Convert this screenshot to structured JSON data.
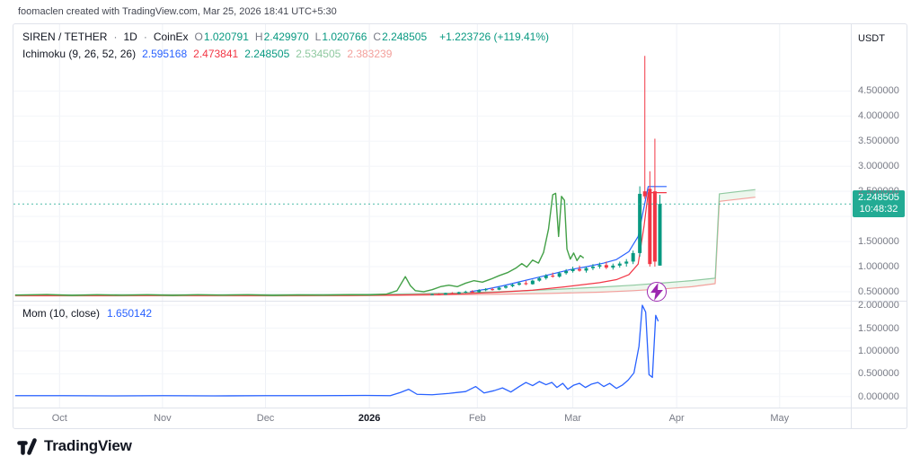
{
  "attribution": "foomaclen created with TradingView.com, Mar 25, 2026 18:41 UTC+5:30",
  "colors": {
    "up": "#089981",
    "down": "#f23645",
    "blue": "#2962ff",
    "badge": "#22ab94",
    "purple": "#9c27b0",
    "grid": "#f0f3fa",
    "text_dim": "#787b86",
    "text_dark": "#131722"
  },
  "header": {
    "symbol": "SIREN / TETHER",
    "sep": "·",
    "interval": "1D",
    "exchange": "CoinEx",
    "ohlc": [
      {
        "label": "O",
        "value": "1.020791"
      },
      {
        "label": "H",
        "value": "2.429970"
      },
      {
        "label": "L",
        "value": "1.020766"
      },
      {
        "label": "C",
        "value": "2.248505"
      }
    ],
    "change": "+1.223726 (+119.41%)",
    "ichimoku_label": "Ichimoku (9, 26, 52, 26)",
    "ichimoku_values": [
      {
        "text": "2.595168",
        "color": "#2962ff"
      },
      {
        "text": "2.473841",
        "color": "#f23645"
      },
      {
        "text": "2.248505",
        "color": "#089981"
      },
      {
        "text": "2.534505",
        "color": "#8fc9a0"
      },
      {
        "text": "2.383239",
        "color": "#f3a09c"
      }
    ]
  },
  "mom_legend": {
    "label": "Mom (10, close)",
    "value": "1.650142",
    "color": "#2962ff"
  },
  "price_axis": {
    "currency": "USDT",
    "labels": [
      {
        "text": "4.500000",
        "value": 4.5
      },
      {
        "text": "4.000000",
        "value": 4.0
      },
      {
        "text": "3.500000",
        "value": 3.5
      },
      {
        "text": "3.000000",
        "value": 3.0
      },
      {
        "text": "2.500000",
        "value": 2.5
      },
      {
        "text": "1.500000",
        "value": 1.5
      },
      {
        "text": "1.000000",
        "value": 1.0
      },
      {
        "text": "0.500000",
        "value": 0.5
      }
    ],
    "badge": {
      "price": "2.248505",
      "countdown": "10:48:32",
      "value": 2.248505,
      "color": "#22ab94"
    }
  },
  "mom_axis": {
    "labels": [
      {
        "text": "2.000000",
        "value": 2.0
      },
      {
        "text": "1.500000",
        "value": 1.5
      },
      {
        "text": "1.000000",
        "value": 1.0
      },
      {
        "text": "0.500000",
        "value": 0.5
      },
      {
        "text": "0.000000",
        "value": 0.0
      }
    ]
  },
  "time_axis": {
    "labels": [
      {
        "text": "Oct",
        "x": 0.055,
        "bold": false
      },
      {
        "text": "Nov",
        "x": 0.178,
        "bold": false
      },
      {
        "text": "Dec",
        "x": 0.301,
        "bold": false
      },
      {
        "text": "2026",
        "x": 0.425,
        "bold": true
      },
      {
        "text": "Feb",
        "x": 0.554,
        "bold": false
      },
      {
        "text": "Mar",
        "x": 0.668,
        "bold": false
      },
      {
        "text": "Apr",
        "x": 0.792,
        "bold": false
      },
      {
        "text": "May",
        "x": 0.915,
        "bold": false
      }
    ]
  },
  "logo": {
    "text": "TradingView"
  },
  "chart_data": [
    {
      "type": "candlestick",
      "title": "SIREN/TETHER 1D candles with Ichimoku (9, 26, 52, 26) overlay",
      "ylim": [
        0.32,
        5.83
      ],
      "grid_values": [
        0.5,
        1.0,
        1.5,
        2.0,
        2.5,
        3.0,
        3.5,
        4.0,
        4.5
      ],
      "price_line": {
        "value": 2.248505,
        "color": "#22ab94"
      },
      "event_marker": {
        "x": 0.768,
        "value": 0.5,
        "name": "flash-event"
      },
      "candles": [
        [
          0.5,
          0.44,
          0.46,
          0.43,
          0.45
        ],
        [
          0.508,
          0.45,
          0.47,
          0.44,
          0.44
        ],
        [
          0.516,
          0.44,
          0.48,
          0.44,
          0.47
        ],
        [
          0.524,
          0.47,
          0.49,
          0.45,
          0.46
        ],
        [
          0.532,
          0.46,
          0.5,
          0.45,
          0.49
        ],
        [
          0.54,
          0.49,
          0.52,
          0.47,
          0.5
        ],
        [
          0.548,
          0.5,
          0.53,
          0.48,
          0.49
        ],
        [
          0.556,
          0.49,
          0.55,
          0.48,
          0.53
        ],
        [
          0.564,
          0.53,
          0.57,
          0.51,
          0.55
        ],
        [
          0.572,
          0.55,
          0.58,
          0.52,
          0.54
        ],
        [
          0.58,
          0.54,
          0.6,
          0.53,
          0.58
        ],
        [
          0.588,
          0.58,
          0.63,
          0.56,
          0.61
        ],
        [
          0.596,
          0.61,
          0.66,
          0.59,
          0.64
        ],
        [
          0.604,
          0.64,
          0.7,
          0.62,
          0.67
        ],
        [
          0.612,
          0.67,
          0.72,
          0.63,
          0.65
        ],
        [
          0.62,
          0.65,
          0.74,
          0.64,
          0.72
        ],
        [
          0.628,
          0.72,
          0.8,
          0.7,
          0.77
        ],
        [
          0.636,
          0.77,
          0.85,
          0.74,
          0.82
        ],
        [
          0.644,
          0.82,
          0.88,
          0.78,
          0.8
        ],
        [
          0.652,
          0.8,
          0.9,
          0.78,
          0.87
        ],
        [
          0.66,
          0.87,
          0.95,
          0.84,
          0.91
        ],
        [
          0.668,
          0.91,
          1.0,
          0.88,
          0.95
        ],
        [
          0.676,
          0.95,
          1.02,
          0.9,
          0.92
        ],
        [
          0.684,
          0.92,
          1.0,
          0.88,
          0.97
        ],
        [
          0.692,
          0.97,
          1.05,
          0.93,
          1.0
        ],
        [
          0.7,
          1.0,
          1.08,
          0.96,
          1.03
        ],
        [
          0.708,
          1.03,
          1.1,
          0.95,
          0.98
        ],
        [
          0.716,
          0.98,
          1.06,
          0.94,
          1.02
        ],
        [
          0.724,
          1.02,
          1.1,
          0.98,
          1.06
        ],
        [
          0.732,
          1.06,
          1.15,
          1.0,
          1.1
        ],
        [
          0.74,
          1.1,
          1.32,
          1.05,
          1.27
        ],
        [
          0.748,
          1.27,
          2.6,
          1.2,
          2.45
        ],
        [
          0.754,
          2.5,
          5.2,
          2.35,
          2.4
        ],
        [
          0.76,
          2.55,
          2.9,
          1.0,
          1.05
        ],
        [
          0.766,
          2.5,
          3.55,
          1.0,
          1.1
        ],
        [
          0.772,
          1.02,
          2.43,
          1.02,
          2.249
        ]
      ],
      "cloud": {
        "a": "senkou_a",
        "b": "senkou_b",
        "fill": "rgba(76,175,80,0.10)"
      },
      "series": [
        {
          "name": "senkou_b",
          "color": "#f3a09c",
          "width": 1.2,
          "points": [
            [
              0.002,
              0.415
            ],
            [
              0.08,
              0.415
            ],
            [
              0.16,
              0.418
            ],
            [
              0.24,
              0.415
            ],
            [
              0.32,
              0.416
            ],
            [
              0.4,
              0.418
            ],
            [
              0.46,
              0.425
            ],
            [
              0.52,
              0.435
            ],
            [
              0.58,
              0.45
            ],
            [
              0.64,
              0.465
            ],
            [
              0.7,
              0.49
            ],
            [
              0.74,
              0.52
            ],
            [
              0.78,
              0.56
            ],
            [
              0.81,
              0.6
            ],
            [
              0.838,
              0.66
            ],
            [
              0.843,
              2.3
            ],
            [
              0.886,
              2.383
            ]
          ]
        },
        {
          "name": "senkou_a",
          "color": "#8fc9a0",
          "width": 1.2,
          "points": [
            [
              0.002,
              0.44
            ],
            [
              0.08,
              0.44
            ],
            [
              0.16,
              0.442
            ],
            [
              0.24,
              0.44
            ],
            [
              0.32,
              0.441
            ],
            [
              0.4,
              0.445
            ],
            [
              0.46,
              0.455
            ],
            [
              0.52,
              0.47
            ],
            [
              0.58,
              0.5
            ],
            [
              0.64,
              0.54
            ],
            [
              0.7,
              0.59
            ],
            [
              0.74,
              0.63
            ],
            [
              0.78,
              0.68
            ],
            [
              0.81,
              0.72
            ],
            [
              0.838,
              0.77
            ],
            [
              0.843,
              2.45
            ],
            [
              0.886,
              2.535
            ]
          ]
        },
        {
          "name": "kijun",
          "color": "#f23645",
          "width": 1.2,
          "points": [
            [
              0.002,
              0.425
            ],
            [
              0.1,
              0.425
            ],
            [
              0.2,
              0.427
            ],
            [
              0.3,
              0.425
            ],
            [
              0.4,
              0.428
            ],
            [
              0.46,
              0.435
            ],
            [
              0.5,
              0.445
            ],
            [
              0.54,
              0.46
            ],
            [
              0.58,
              0.49
            ],
            [
              0.62,
              0.53
            ],
            [
              0.66,
              0.6
            ],
            [
              0.7,
              0.68
            ],
            [
              0.72,
              0.74
            ],
            [
              0.735,
              0.84
            ],
            [
              0.746,
              1.05
            ],
            [
              0.753,
              1.8
            ],
            [
              0.758,
              2.474
            ],
            [
              0.78,
              2.474
            ]
          ]
        },
        {
          "name": "tenkan",
          "color": "#2962ff",
          "width": 1.2,
          "points": [
            [
              0.545,
              0.5
            ],
            [
              0.565,
              0.55
            ],
            [
              0.585,
              0.62
            ],
            [
              0.605,
              0.7
            ],
            [
              0.625,
              0.78
            ],
            [
              0.645,
              0.86
            ],
            [
              0.665,
              0.94
            ],
            [
              0.685,
              1.0
            ],
            [
              0.705,
              1.07
            ],
            [
              0.72,
              1.14
            ],
            [
              0.735,
              1.3
            ],
            [
              0.746,
              1.6
            ],
            [
              0.752,
              2.1
            ],
            [
              0.758,
              2.595
            ],
            [
              0.78,
              2.595
            ]
          ]
        },
        {
          "name": "chikou",
          "color": "#43a047",
          "width": 1.4,
          "points": [
            [
              0.002,
              0.43
            ],
            [
              0.04,
              0.445
            ],
            [
              0.07,
              0.425
            ],
            [
              0.1,
              0.44
            ],
            [
              0.13,
              0.428
            ],
            [
              0.16,
              0.44
            ],
            [
              0.19,
              0.425
            ],
            [
              0.22,
              0.44
            ],
            [
              0.25,
              0.43
            ],
            [
              0.28,
              0.44
            ],
            [
              0.31,
              0.425
            ],
            [
              0.34,
              0.435
            ],
            [
              0.37,
              0.43
            ],
            [
              0.4,
              0.44
            ],
            [
              0.425,
              0.435
            ],
            [
              0.445,
              0.45
            ],
            [
              0.458,
              0.52
            ],
            [
              0.468,
              0.8
            ],
            [
              0.474,
              0.62
            ],
            [
              0.48,
              0.52
            ],
            [
              0.49,
              0.5
            ],
            [
              0.5,
              0.54
            ],
            [
              0.51,
              0.6
            ],
            [
              0.52,
              0.63
            ],
            [
              0.53,
              0.6
            ],
            [
              0.54,
              0.67
            ],
            [
              0.55,
              0.72
            ],
            [
              0.56,
              0.69
            ],
            [
              0.57,
              0.75
            ],
            [
              0.58,
              0.82
            ],
            [
              0.59,
              0.88
            ],
            [
              0.6,
              0.97
            ],
            [
              0.607,
              1.06
            ],
            [
              0.613,
              0.99
            ],
            [
              0.62,
              1.13
            ],
            [
              0.627,
              1.07
            ],
            [
              0.633,
              1.28
            ],
            [
              0.639,
              1.75
            ],
            [
              0.644,
              2.43
            ],
            [
              0.6475,
              2.46
            ],
            [
              0.651,
              1.6
            ],
            [
              0.6545,
              2.4
            ],
            [
              0.658,
              2.32
            ],
            [
              0.661,
              1.35
            ],
            [
              0.665,
              1.15
            ],
            [
              0.669,
              1.27
            ],
            [
              0.673,
              1.12
            ],
            [
              0.677,
              1.22
            ],
            [
              0.681,
              1.17
            ]
          ]
        }
      ]
    },
    {
      "type": "line",
      "title": "Momentum (10, close)",
      "ylim": [
        -0.24,
        2.08
      ],
      "grid_values": [
        0.0,
        0.5,
        1.0,
        1.5,
        2.0
      ],
      "series": [
        {
          "name": "mom",
          "color": "#2962ff",
          "width": 1.3,
          "points": [
            [
              0.002,
              0.02
            ],
            [
              0.06,
              0.02
            ],
            [
              0.12,
              0.015
            ],
            [
              0.18,
              0.02
            ],
            [
              0.24,
              0.015
            ],
            [
              0.3,
              0.02
            ],
            [
              0.36,
              0.02
            ],
            [
              0.42,
              0.025
            ],
            [
              0.45,
              0.02
            ],
            [
              0.462,
              0.09
            ],
            [
              0.472,
              0.16
            ],
            [
              0.482,
              0.05
            ],
            [
              0.5,
              0.04
            ],
            [
              0.52,
              0.07
            ],
            [
              0.54,
              0.11
            ],
            [
              0.552,
              0.22
            ],
            [
              0.562,
              0.08
            ],
            [
              0.574,
              0.13
            ],
            [
              0.584,
              0.19
            ],
            [
              0.594,
              0.1
            ],
            [
              0.604,
              0.22
            ],
            [
              0.612,
              0.31
            ],
            [
              0.62,
              0.24
            ],
            [
              0.628,
              0.33
            ],
            [
              0.636,
              0.26
            ],
            [
              0.643,
              0.31
            ],
            [
              0.649,
              0.2
            ],
            [
              0.656,
              0.29
            ],
            [
              0.662,
              0.16
            ],
            [
              0.669,
              0.25
            ],
            [
              0.676,
              0.29
            ],
            [
              0.683,
              0.2
            ],
            [
              0.69,
              0.27
            ],
            [
              0.698,
              0.31
            ],
            [
              0.705,
              0.22
            ],
            [
              0.712,
              0.29
            ],
            [
              0.72,
              0.18
            ],
            [
              0.727,
              0.25
            ],
            [
              0.734,
              0.36
            ],
            [
              0.741,
              0.52
            ],
            [
              0.747,
              1.1
            ],
            [
              0.751,
              2.0
            ],
            [
              0.755,
              1.85
            ],
            [
              0.759,
              0.48
            ],
            [
              0.763,
              0.42
            ],
            [
              0.767,
              1.78
            ],
            [
              0.77,
              1.65
            ]
          ]
        }
      ]
    }
  ]
}
